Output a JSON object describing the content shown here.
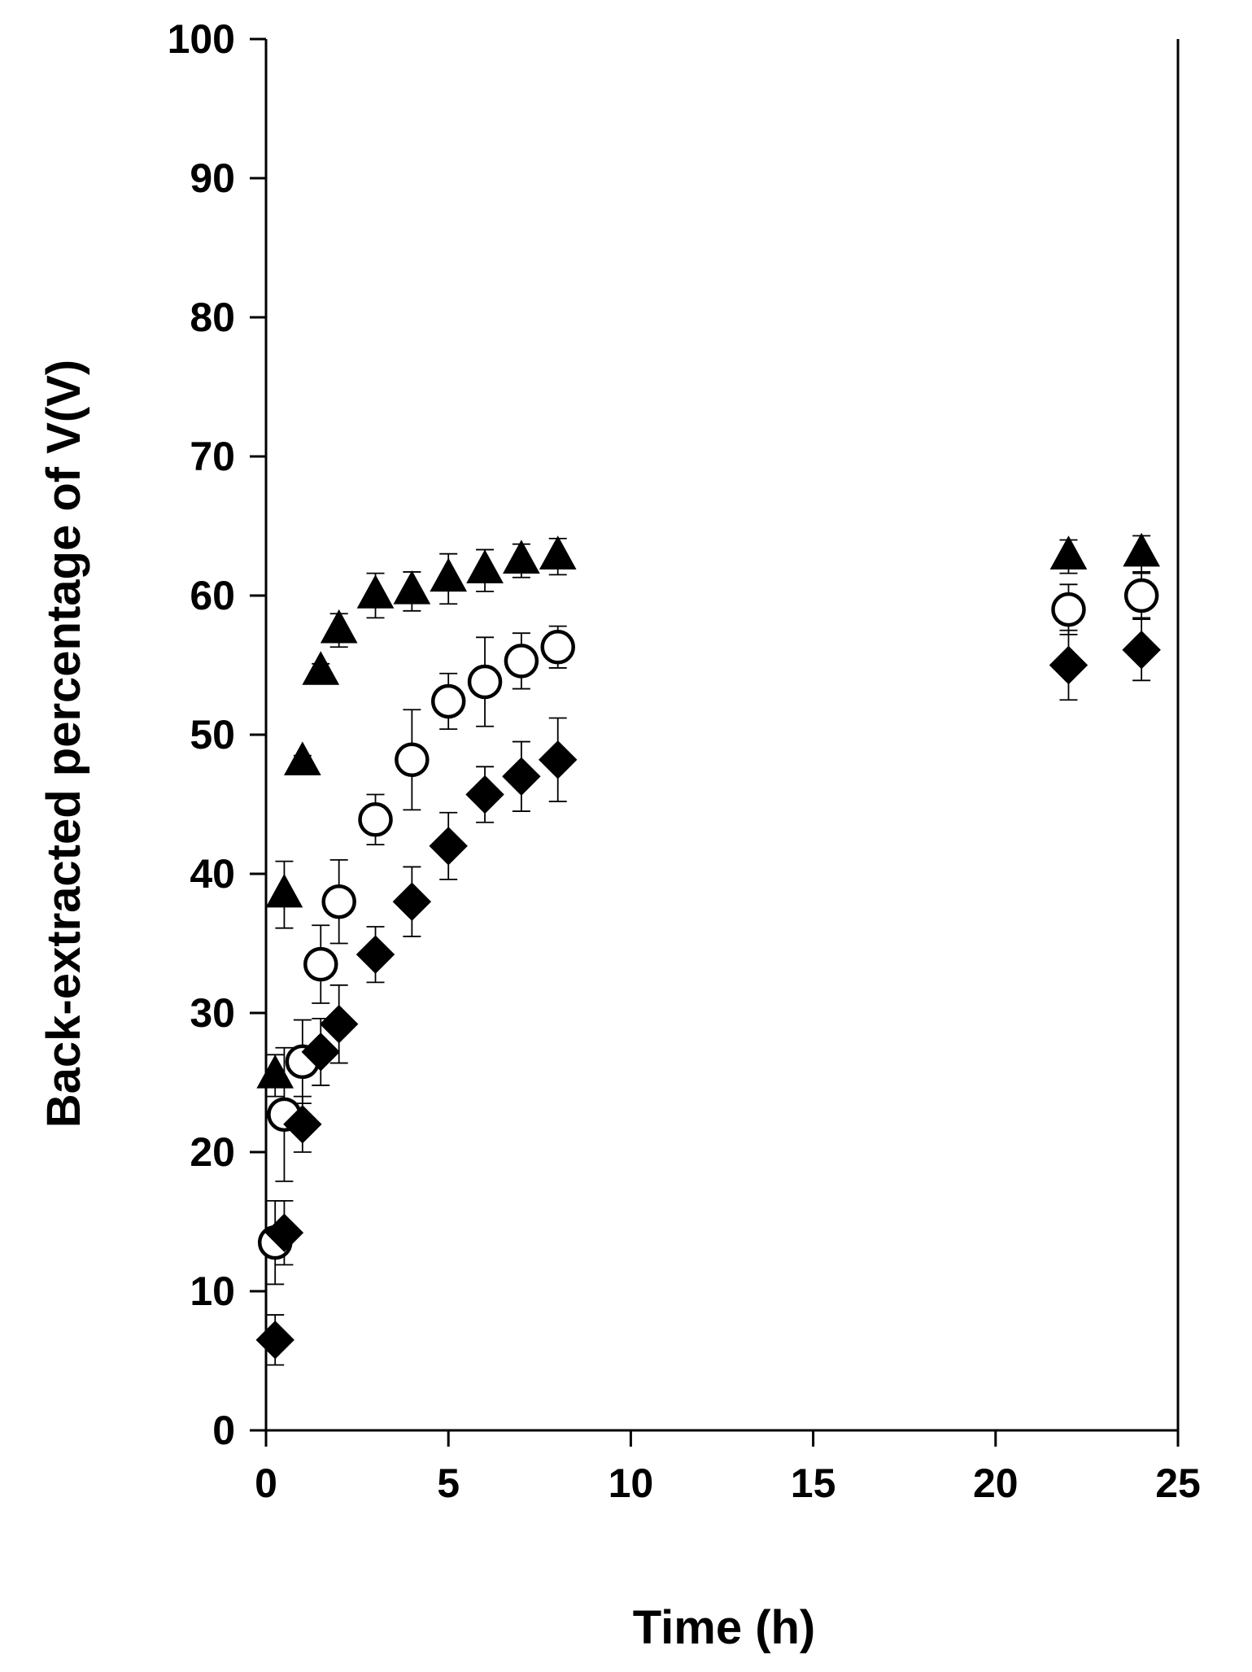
{
  "chart_data": {
    "type": "scatter",
    "title": "",
    "xlabel": "Time (h)",
    "ylabel": "Back-extracted percentage of V(V)",
    "xlim": [
      0,
      25
    ],
    "ylim": [
      0,
      100
    ],
    "x_ticks": [
      "0",
      "5",
      "10",
      "15",
      "20",
      "25"
    ],
    "y_ticks": [
      "0",
      "10",
      "20",
      "30",
      "40",
      "50",
      "60",
      "70",
      "80",
      "90",
      "100"
    ],
    "grid": false,
    "legend": "none",
    "series": [
      {
        "marker": "triangle-filled",
        "color": "#000000",
        "x": [
          0.25,
          0.5,
          1,
          1.5,
          2,
          3,
          4,
          5,
          6,
          7,
          8,
          22,
          24
        ],
        "y": [
          25.5,
          38.5,
          48.0,
          54.5,
          57.5,
          60.0,
          60.3,
          61.2,
          61.8,
          62.5,
          62.8,
          62.8,
          63.0
        ],
        "error": [
          1.5,
          2.4,
          0.5,
          0.6,
          1.2,
          1.6,
          1.4,
          1.8,
          1.5,
          1.2,
          1.3,
          1.2,
          1.3
        ]
      },
      {
        "marker": "circle-open",
        "color": "#000000",
        "x": [
          0.25,
          0.5,
          1,
          1.5,
          2,
          3,
          4,
          5,
          6,
          7,
          8,
          22,
          24
        ],
        "y": [
          13.5,
          22.7,
          26.5,
          33.5,
          38.0,
          43.9,
          48.2,
          52.4,
          53.8,
          55.3,
          56.3,
          59.0,
          60.0
        ],
        "error": [
          3.0,
          4.8,
          3.0,
          2.8,
          3.0,
          1.8,
          3.6,
          2.0,
          3.2,
          2.0,
          1.5,
          1.8,
          1.6
        ]
      },
      {
        "marker": "diamond-filled",
        "color": "#000000",
        "x": [
          0.25,
          0.5,
          1,
          1.5,
          2,
          3,
          4,
          5,
          6,
          7,
          8,
          22,
          24
        ],
        "y": [
          6.5,
          14.2,
          22.0,
          27.2,
          29.2,
          34.2,
          38.0,
          42.0,
          45.7,
          47.0,
          48.2,
          55.0,
          56.1
        ],
        "error": [
          1.8,
          2.3,
          2.0,
          2.4,
          2.8,
          2.0,
          2.5,
          2.4,
          2.0,
          2.5,
          3.0,
          2.5,
          2.2
        ]
      }
    ]
  }
}
